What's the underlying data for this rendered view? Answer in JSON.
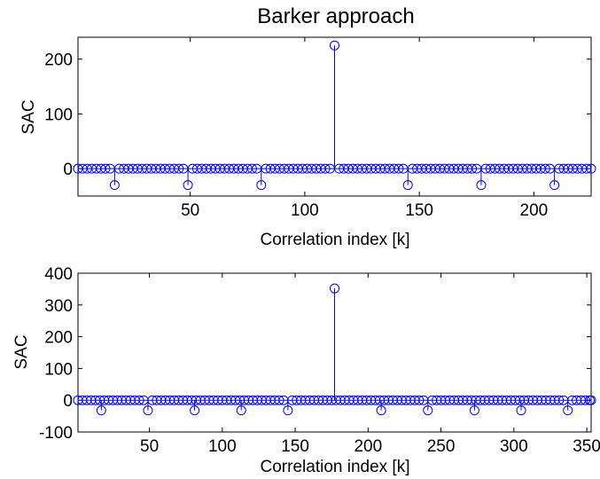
{
  "figure_title": "Barker approach",
  "colors": {
    "series": "#0000ff",
    "axes": "#000000",
    "background": "#ffffff"
  },
  "chart_data": [
    {
      "type": "stem",
      "title": "Barker approach",
      "xlabel": "Correlation index [k]",
      "ylabel": "SAC",
      "xlim": [
        1,
        225
      ],
      "ylim": [
        -50,
        240
      ],
      "xticks": [
        50,
        100,
        150,
        200
      ],
      "yticks": [
        0,
        100,
        200
      ],
      "grid": false,
      "marker": "circle",
      "baseline_value": 0,
      "sample_count": 225,
      "sample_step": 2,
      "default_value": 0,
      "peaks": [
        {
          "x": 113,
          "y": 225
        }
      ],
      "negative_points": [
        {
          "x": 17,
          "y": -30
        },
        {
          "x": 49,
          "y": -30
        },
        {
          "x": 81,
          "y": -30
        },
        {
          "x": 145,
          "y": -30
        },
        {
          "x": 177,
          "y": -30
        },
        {
          "x": 209,
          "y": -30
        }
      ]
    },
    {
      "type": "stem",
      "title": "",
      "xlabel": "Correlation index [k]",
      "ylabel": "SAC",
      "xlim": [
        1,
        353
      ],
      "ylim": [
        -100,
        400
      ],
      "xticks": [
        50,
        100,
        150,
        200,
        250,
        300,
        350
      ],
      "yticks": [
        -100,
        0,
        100,
        200,
        300,
        400
      ],
      "grid": false,
      "marker": "circle",
      "baseline_value": 0,
      "sample_count": 353,
      "sample_step": 3,
      "default_value": 0,
      "peaks": [
        {
          "x": 177,
          "y": 352
        }
      ],
      "negative_points": [
        {
          "x": 17,
          "y": -32
        },
        {
          "x": 49,
          "y": -32
        },
        {
          "x": 81,
          "y": -32
        },
        {
          "x": 113,
          "y": -32
        },
        {
          "x": 145,
          "y": -32
        },
        {
          "x": 209,
          "y": -32
        },
        {
          "x": 241,
          "y": -32
        },
        {
          "x": 273,
          "y": -32
        },
        {
          "x": 305,
          "y": -32
        },
        {
          "x": 337,
          "y": -32
        }
      ]
    }
  ]
}
